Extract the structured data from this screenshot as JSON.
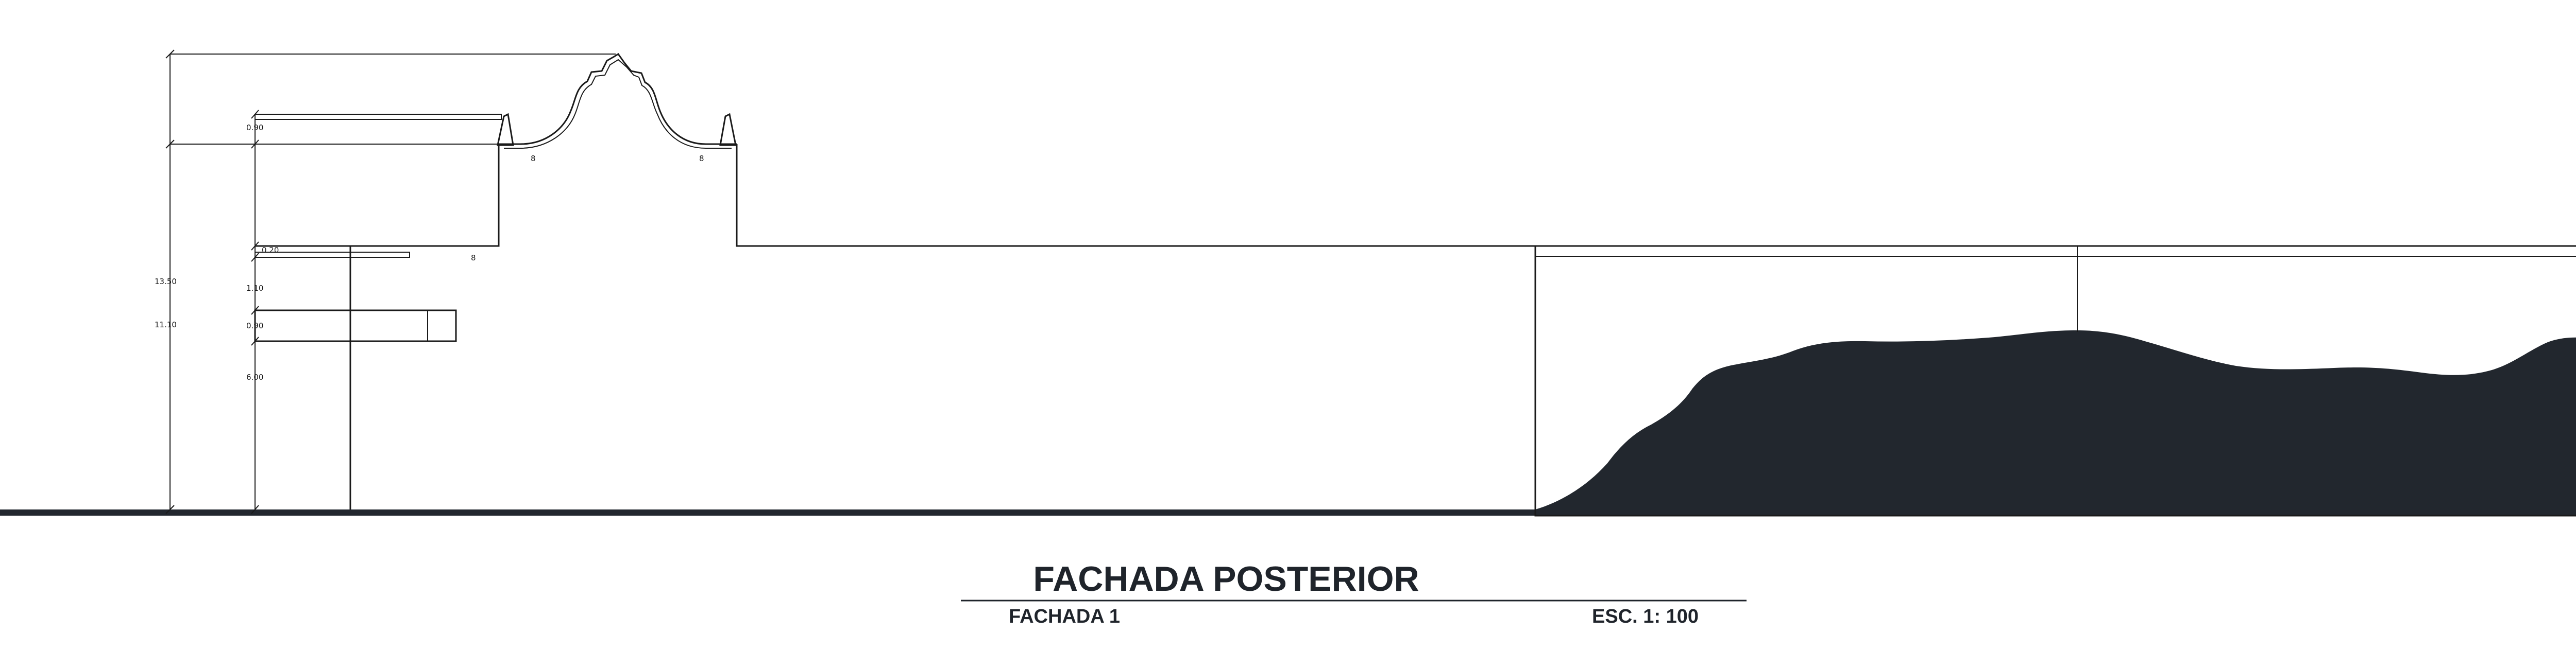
{
  "title": "FACHADA POSTERIOR",
  "subtitle_left": "FACHADA 1",
  "subtitle_right": "ESC. 1: 100",
  "dimensions": {
    "total_height": "13.50",
    "upper_height": "11.10",
    "top_offset": "0.90",
    "mid_offset": "0.20",
    "mid_height": "1.10",
    "band_height": "0.90",
    "lower_height": "6.00",
    "vent_marks": [
      "8",
      "8",
      "8"
    ]
  },
  "colors": {
    "ink": "#1a1a1a",
    "vegetation": "#22272e",
    "ground": "#22272e"
  }
}
